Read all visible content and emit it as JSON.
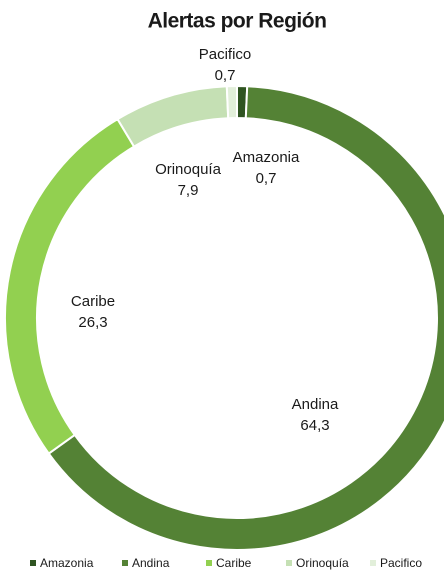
{
  "chart_data": {
    "type": "donut",
    "title": "Alertas por Región",
    "categories": [
      "Amazonia",
      "Andina",
      "Caribe",
      "Orinoquía",
      "Pacifico"
    ],
    "values": [
      0.7,
      64.3,
      26.3,
      7.9,
      0.7
    ],
    "value_labels": [
      "0,7",
      "64,3",
      "26,3",
      "7,9",
      "0,7"
    ],
    "colors": [
      "#2f5421",
      "#548235",
      "#92d050",
      "#c5e0b4",
      "#e2efda"
    ],
    "legend": "bottom"
  }
}
